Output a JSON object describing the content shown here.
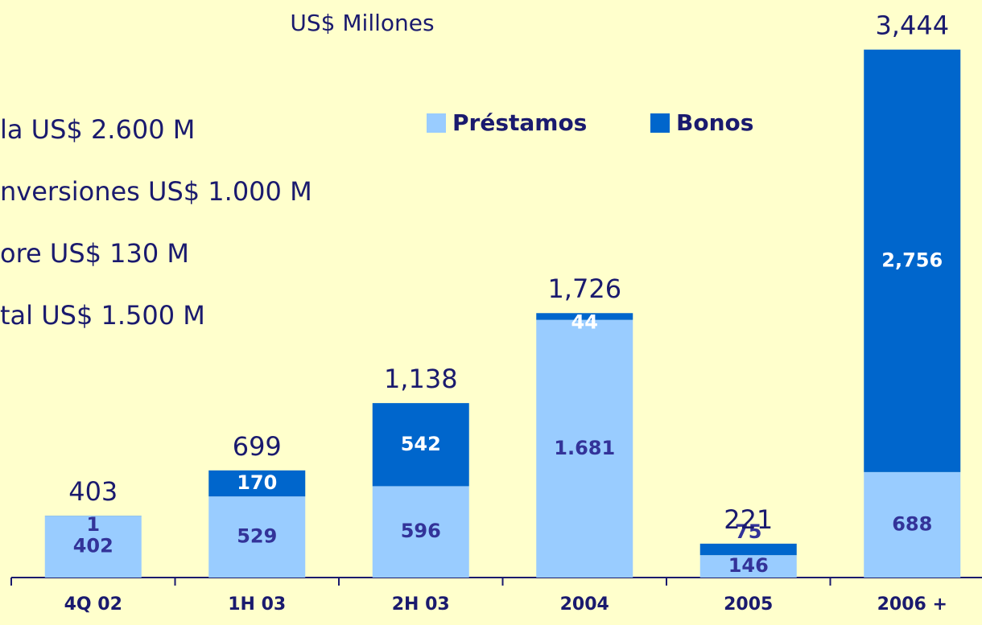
{
  "chart_data": {
    "type": "stacked_bar",
    "subtitle": "US$ Millones",
    "annotations": [
      "la US$ 2.600 M",
      "nversiones US$ 1.000 M",
      "ore US$ 130 M",
      "tal US$ 1.500 M"
    ],
    "categories": [
      "4Q 02",
      "1H 03",
      "2H 03",
      "2004",
      "2005",
      "2006 +"
    ],
    "series": [
      {
        "name": "Préstamos",
        "color": "#99ccff",
        "values": [
          402,
          529,
          596,
          1681,
          146,
          688
        ],
        "value_labels": [
          "402",
          "529",
          "596",
          "1.681",
          "146",
          "688"
        ]
      },
      {
        "name": "Bonos",
        "color": "#0066cc",
        "values": [
          1,
          170,
          542,
          44,
          75,
          2756
        ],
        "value_labels": [
          "1",
          "170",
          "542",
          "44",
          "75",
          "2,756"
        ]
      }
    ],
    "totals": [
      403,
      699,
      1138,
      1726,
      221,
      3444
    ],
    "total_labels": [
      "403",
      "699",
      "1,138",
      "1,726",
      "221",
      "3,444"
    ],
    "ylim": [
      0,
      3500
    ]
  }
}
